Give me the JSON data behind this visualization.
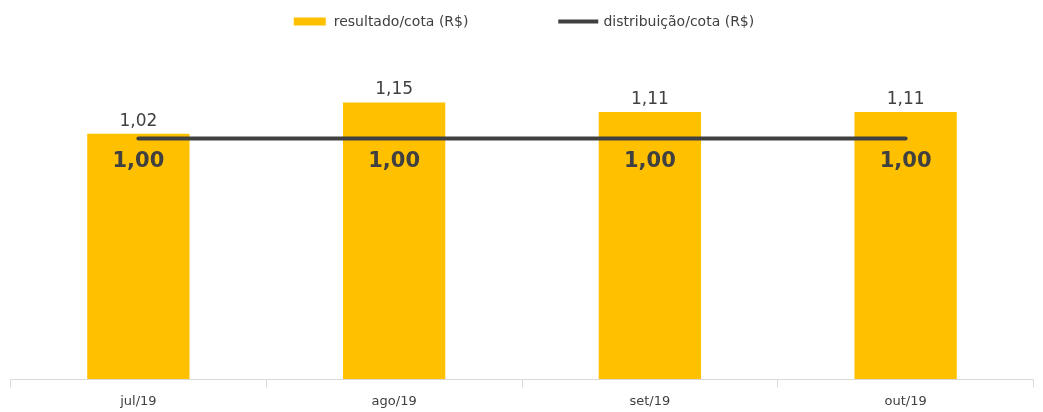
{
  "chart_data": {
    "type": "bar",
    "categories": [
      "jul/19",
      "ago/19",
      "set/19",
      "out/19"
    ],
    "series": [
      {
        "name": "resultado/cota (R$)",
        "color": "#ffc000",
        "values": [
          1.02,
          1.15,
          1.11,
          1.11
        ],
        "value_labels": [
          "1,02",
          "1,15",
          "1,11",
          "1,11"
        ]
      },
      {
        "name": "distribuição/cota (R$)",
        "type": "line",
        "color": "#404040",
        "values": [
          1.0,
          1.0,
          1.0,
          1.0
        ],
        "value_labels": [
          "1,00",
          "1,00",
          "1,00",
          "1,00"
        ]
      }
    ],
    "tick_labels": "x",
    "grid": false,
    "legend": "top"
  }
}
